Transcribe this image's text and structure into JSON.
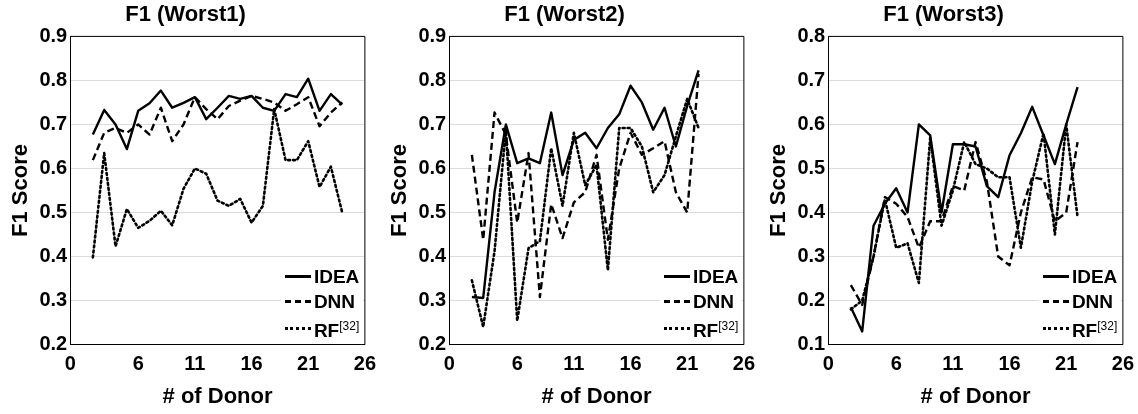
{
  "chart_data": [
    {
      "type": "line",
      "title": "F1 (Worst1)",
      "xlabel": "# of Donor",
      "ylabel": "F1 Score",
      "xlim": [
        0,
        26
      ],
      "xticks": [
        0,
        6,
        11,
        16,
        21,
        26
      ],
      "ylim": [
        0.2,
        0.9
      ],
      "yticks": [
        0.2,
        0.3,
        0.4,
        0.5,
        0.6,
        0.7,
        0.8,
        0.9
      ],
      "grid": "y",
      "legend": "bottom right",
      "marker": "none",
      "x": [
        2,
        3,
        4,
        5,
        6,
        7,
        8,
        9,
        10,
        11,
        12,
        13,
        14,
        15,
        16,
        17,
        18,
        19,
        20,
        21,
        22,
        23,
        24
      ],
      "series": [
        {
          "name": "IDEA",
          "color": "#000000",
          "line_style": "solid",
          "values": [
            0.677,
            0.733,
            0.7,
            0.644,
            0.731,
            0.748,
            0.777,
            0.738,
            0.749,
            0.762,
            0.712,
            0.738,
            0.765,
            0.758,
            0.765,
            0.738,
            0.731,
            0.769,
            0.762,
            0.804,
            0.731,
            0.769,
            0.745
          ]
        },
        {
          "name": "DNN",
          "color": "#000000",
          "line_style": "dashed",
          "values": [
            0.619,
            0.681,
            0.692,
            0.681,
            0.7,
            0.677,
            0.738,
            0.662,
            0.7,
            0.762,
            0.735,
            0.712,
            0.742,
            0.754,
            0.765,
            0.758,
            0.75,
            0.731,
            0.746,
            0.762,
            0.696,
            0.727,
            0.75
          ]
        },
        {
          "name": "RF$^{[32]}$",
          "color": "#000000",
          "line_style": "dotted",
          "values": [
            0.398,
            0.635,
            0.423,
            0.508,
            0.465,
            0.481,
            0.504,
            0.471,
            0.554,
            0.6,
            0.588,
            0.527,
            0.515,
            0.531,
            0.477,
            0.515,
            0.735,
            0.619,
            0.619,
            0.662,
            0.558,
            0.604,
            0.5
          ]
        }
      ]
    },
    {
      "type": "line",
      "title": "F1 (Worst2)",
      "xlabel": "# of Donor",
      "ylabel": "F1 Score",
      "xlim": [
        0,
        26
      ],
      "xticks": [
        0,
        6,
        11,
        16,
        21,
        26
      ],
      "ylim": [
        0.2,
        0.9
      ],
      "yticks": [
        0.2,
        0.3,
        0.4,
        0.5,
        0.6,
        0.7,
        0.8,
        0.9
      ],
      "grid": "y",
      "legend": "bottom right",
      "marker": "none",
      "x": [
        2,
        3,
        4,
        5,
        6,
        7,
        8,
        9,
        10,
        11,
        12,
        13,
        14,
        15,
        16,
        17,
        18,
        19,
        20,
        21,
        22
      ],
      "series": [
        {
          "name": "IDEA",
          "color": "#000000",
          "line_style": "solid",
          "values": [
            0.308,
            0.306,
            0.546,
            0.7,
            0.612,
            0.623,
            0.612,
            0.727,
            0.585,
            0.665,
            0.681,
            0.646,
            0.692,
            0.723,
            0.788,
            0.75,
            0.688,
            0.738,
            0.65,
            0.742,
            0.823
          ]
        },
        {
          "name": "DNN",
          "color": "#000000",
          "line_style": "dashed",
          "values": [
            0.631,
            0.438,
            0.727,
            0.677,
            0.477,
            0.635,
            0.308,
            0.519,
            0.442,
            0.523,
            0.546,
            0.631,
            0.438,
            0.6,
            0.681,
            0.631,
            0.646,
            0.662,
            0.546,
            0.5,
            0.815
          ]
        },
        {
          "name": "RF$^{[32]}$",
          "color": "#000000",
          "line_style": "dotted",
          "values": [
            0.346,
            0.24,
            0.412,
            0.688,
            0.254,
            0.419,
            0.435,
            0.646,
            0.515,
            0.681,
            0.562,
            0.608,
            0.369,
            0.692,
            0.692,
            0.65,
            0.546,
            0.585,
            0.673,
            0.758,
            0.692
          ]
        }
      ]
    },
    {
      "type": "line",
      "title": "F1 (Worst3)",
      "xlabel": "# of Donor",
      "ylabel": "F1 Score",
      "xlim": [
        0,
        26
      ],
      "xticks": [
        0,
        6,
        11,
        16,
        21,
        26
      ],
      "ylim": [
        0.1,
        0.8
      ],
      "yticks": [
        0.1,
        0.2,
        0.3,
        0.4,
        0.5,
        0.6,
        0.7,
        0.8
      ],
      "grid": "y",
      "legend": "bottom right",
      "marker": "none",
      "x": [
        2,
        3,
        4,
        5,
        6,
        7,
        8,
        9,
        10,
        11,
        12,
        13,
        14,
        15,
        16,
        17,
        18,
        19,
        20,
        21,
        22
      ],
      "series": [
        {
          "name": "IDEA",
          "color": "#000000",
          "line_style": "solid",
          "values": [
            0.185,
            0.13,
            0.37,
            0.42,
            0.455,
            0.4,
            0.6,
            0.575,
            0.4,
            0.555,
            0.555,
            0.55,
            0.46,
            0.435,
            0.53,
            0.58,
            0.64,
            0.575,
            0.51,
            0.6,
            0.685
          ]
        },
        {
          "name": "DNN",
          "color": "#000000",
          "line_style": "dashed",
          "values": [
            0.235,
            0.19,
            0.3,
            0.435,
            0.42,
            0.39,
            0.32,
            0.38,
            0.38,
            0.46,
            0.45,
            0.56,
            0.47,
            0.3,
            0.28,
            0.4,
            0.48,
            0.475,
            0.38,
            0.4,
            0.56
          ]
        },
        {
          "name": "RF$^{[32]}$",
          "color": "#000000",
          "line_style": "dotted",
          "values": [
            0.18,
            0.2,
            0.3,
            0.43,
            0.32,
            0.33,
            0.24,
            0.57,
            0.37,
            0.45,
            0.56,
            0.51,
            0.5,
            0.48,
            0.48,
            0.32,
            0.47,
            0.58,
            0.35,
            0.6,
            0.39
          ]
        }
      ]
    }
  ]
}
